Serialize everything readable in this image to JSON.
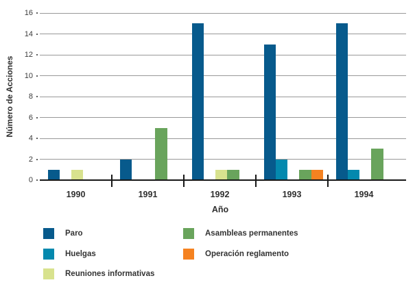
{
  "chart_data": {
    "type": "bar",
    "title": "",
    "xlabel": "Año",
    "ylabel": "Número de Acciones",
    "categories": [
      "1990",
      "1991",
      "1992",
      "1993",
      "1994"
    ],
    "series": [
      {
        "key": "paro",
        "name": "Paro",
        "color": "#075a8c",
        "values": [
          1,
          2,
          15,
          13,
          15
        ]
      },
      {
        "key": "huelgas",
        "name": "Huelgas",
        "color": "#0489ae",
        "values": [
          0,
          0,
          0,
          2,
          1
        ]
      },
      {
        "key": "reuniones-informativas",
        "name": "Reuniones informativas",
        "color": "#d8e28e",
        "values": [
          1,
          0,
          1,
          0,
          0
        ]
      },
      {
        "key": "asambleas-permanentes",
        "name": "Asambleas permanentes",
        "color": "#69a45c",
        "values": [
          0,
          5,
          1,
          1,
          3
        ]
      },
      {
        "key": "operacion-reglamento",
        "name": "Operación reglamento",
        "color": "#f58220",
        "values": [
          0,
          0,
          0,
          1,
          0
        ]
      }
    ],
    "ylim": [
      0,
      16
    ],
    "ytick_step": 2,
    "yticks": [
      "0",
      "2",
      "4",
      "6",
      "8",
      "10",
      "12",
      "14",
      "16"
    ],
    "grid": true,
    "legend_position": "bottom",
    "legend_columns": [
      3,
      2
    ],
    "axis_color": "#161616",
    "gridline_color": "#989898"
  }
}
